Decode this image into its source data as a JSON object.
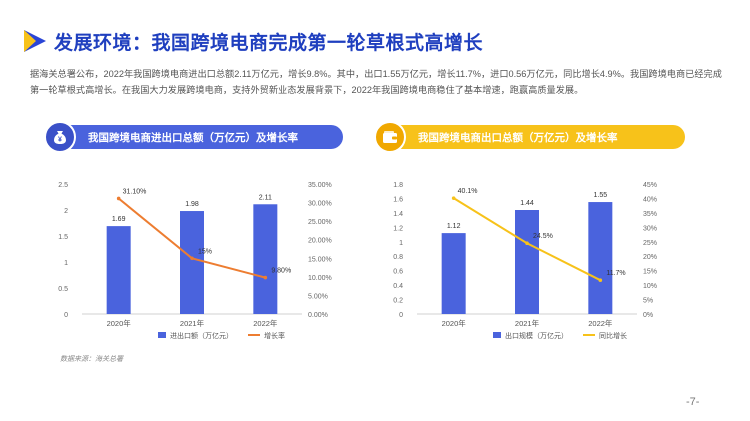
{
  "header": {
    "title": "发展环境：我国跨境电商完成第一轮草根式高增长"
  },
  "intro": "据海关总署公布，2022年我国跨境电商进出口总额2.11万亿元，增长9.8%。其中，出口1.55万亿元，增长11.7%，进口0.56万亿元，同比增长4.9%。我国跨境电商已经完成第一轮草根式高增长。在我国大力发展跨境电商，支持外贸新业态发展背景下，2022年我国跨境电商稳住了基本增速，跑赢高质量发展。",
  "colors": {
    "title": "#1f3fbf",
    "bar": "#4a63dd",
    "line_left": "#ed7d31",
    "line_right": "#f7c21a",
    "header_left": "#4a63dd",
    "header_right": "#f7c21a"
  },
  "panels": {
    "left": {
      "title": "我国跨境电商进出口总额（万亿元）及增长率",
      "icon": "money-bag-icon"
    },
    "right": {
      "title": "我国跨境电商出口总额（万亿元）及增长率",
      "icon": "wallet-icon"
    }
  },
  "chart_data": [
    {
      "type": "bar",
      "categories": [
        "2020年",
        "2021年",
        "2022年"
      ],
      "series": [
        {
          "name": "进出口额（万亿元）",
          "values": [
            1.69,
            1.98,
            2.11
          ],
          "axis": "left",
          "labels": [
            "1.69",
            "1.98",
            "2.11"
          ]
        },
        {
          "name": "增长率",
          "type": "line",
          "values": [
            31.1,
            15,
            9.8
          ],
          "axis": "right",
          "labels": [
            "31.10%",
            "15%",
            "9.80%"
          ]
        }
      ],
      "y_left": {
        "min": 0,
        "max": 2.5,
        "ticks": [
          "0",
          "0.5",
          "1",
          "1.5",
          "2",
          "2.5"
        ]
      },
      "y_right": {
        "min": 0,
        "max": 35,
        "ticks": [
          "0.00%",
          "5.00%",
          "10.00%",
          "15.00%",
          "20.00%",
          "25.00%",
          "30.00%",
          "35.00%"
        ]
      },
      "legend": "bottom"
    },
    {
      "type": "bar",
      "categories": [
        "2020年",
        "2021年",
        "2022年"
      ],
      "series": [
        {
          "name": "出口规模（万亿元）",
          "values": [
            1.12,
            1.44,
            1.55
          ],
          "axis": "left",
          "labels": [
            "1.12",
            "1.44",
            "1.55"
          ]
        },
        {
          "name": "同比增长",
          "type": "line",
          "values": [
            40.1,
            24.5,
            11.7
          ],
          "axis": "right",
          "labels": [
            "40.1%",
            "24.5%",
            "11.7%"
          ]
        }
      ],
      "y_left": {
        "min": 0,
        "max": 1.8,
        "ticks": [
          "0",
          "0.2",
          "0.4",
          "0.6",
          "0.8",
          "1",
          "1.2",
          "1.4",
          "1.6",
          "1.8"
        ]
      },
      "y_right": {
        "min": 0,
        "max": 45,
        "ticks": [
          "0%",
          "5%",
          "10%",
          "15%",
          "20%",
          "25%",
          "30%",
          "35%",
          "40%",
          "45%"
        ]
      },
      "legend": "bottom"
    }
  ],
  "footer": {
    "source": "数据来源：海关总署",
    "page": "-7-"
  }
}
